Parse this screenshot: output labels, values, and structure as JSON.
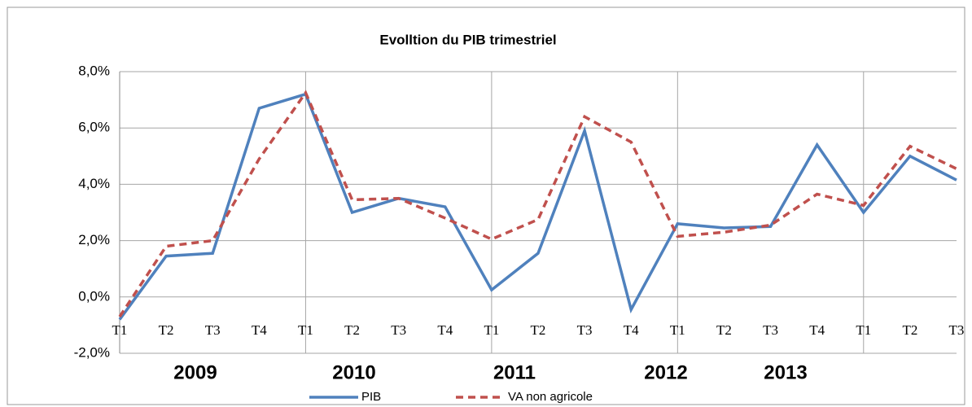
{
  "chart_data": {
    "type": "line",
    "title": "Evolltion du PIB trimestriel",
    "categories": [
      "T1",
      "T2",
      "T3",
      "T4",
      "T1",
      "T2",
      "T3",
      "T4",
      "T1",
      "T2",
      "T3",
      "T4",
      "T1",
      "T2",
      "T3",
      "T4",
      "T1",
      "T2",
      "T3"
    ],
    "year_labels": [
      "2009",
      "2010",
      "2011",
      "2012",
      "2013"
    ],
    "series": [
      {
        "name": "PIB",
        "color": "#4f81bd",
        "dash": false,
        "values": [
          -0.8,
          1.45,
          1.55,
          6.7,
          7.2,
          3.0,
          3.5,
          3.2,
          0.25,
          1.55,
          5.9,
          -0.45,
          2.6,
          2.45,
          2.5,
          5.4,
          3.0,
          5.0,
          4.15
        ]
      },
      {
        "name": "VA non agricole",
        "color": "#c0504d",
        "dash": true,
        "values": [
          -0.7,
          1.8,
          2.0,
          4.9,
          7.25,
          3.45,
          3.5,
          2.8,
          2.05,
          2.75,
          6.4,
          5.5,
          2.15,
          2.3,
          2.55,
          3.65,
          3.25,
          5.35,
          4.55
        ]
      }
    ],
    "ylim": [
      -2,
      8
    ],
    "yticks": [
      {
        "value": -2,
        "label": "-2,0%"
      },
      {
        "value": 0,
        "label": "0,0%"
      },
      {
        "value": 2,
        "label": "2,0%"
      },
      {
        "value": 4,
        "label": "4,0%"
      },
      {
        "value": 6,
        "label": "6,0%"
      },
      {
        "value": 8,
        "label": "8,0%"
      }
    ],
    "grid": true,
    "legend": "bottom"
  }
}
